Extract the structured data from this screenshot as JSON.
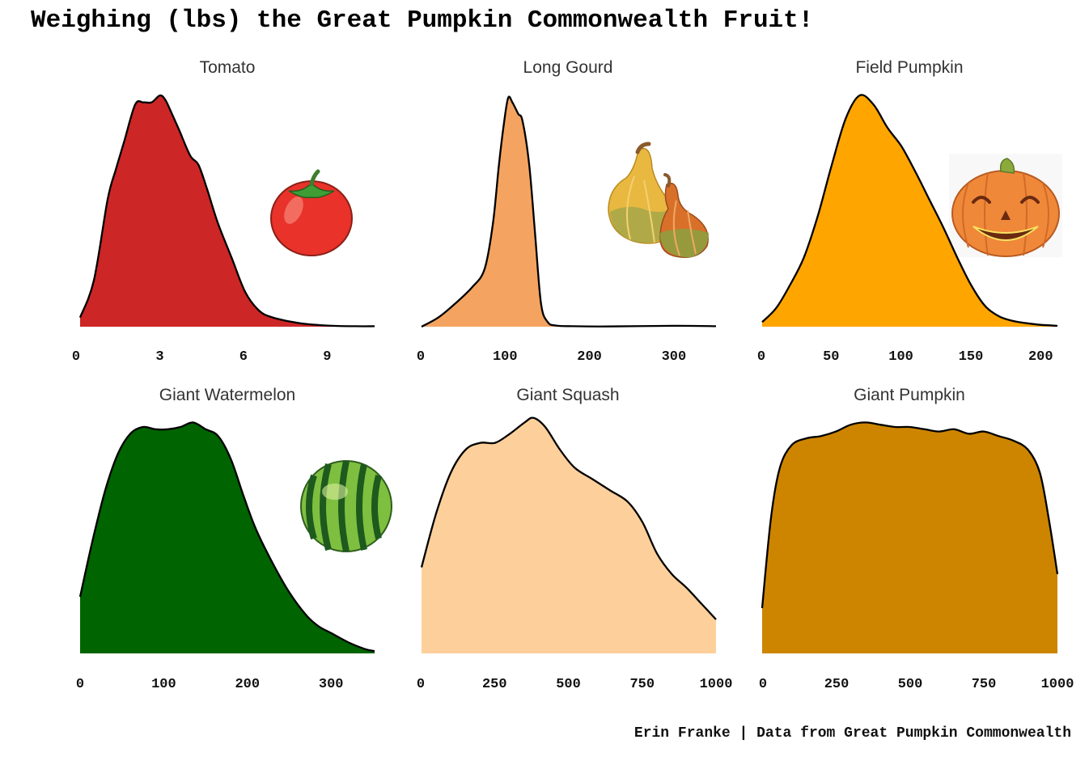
{
  "title": "Weighing (lbs) the Great Pumpkin Commonwealth Fruit!",
  "caption": "Erin Franke | Data from Great Pumpkin Commonwealth",
  "chart_data": {
    "type": "area",
    "panels": [
      {
        "name": "Tomato",
        "fill": "#CD2626",
        "icon": "tomato-icon",
        "xlim": [
          0,
          10.7
        ],
        "ticks": [
          0,
          3,
          6,
          9
        ],
        "x": [
          0,
          0.5,
          1,
          1.3,
          1.6,
          2,
          2.3,
          2.6,
          2.9,
          3.1,
          3.3,
          3.6,
          4,
          4.3,
          4.6,
          5,
          5.5,
          6,
          6.5,
          7,
          8,
          9,
          10,
          10.7
        ],
        "y": [
          0.04,
          0.2,
          0.55,
          0.68,
          0.8,
          0.96,
          0.97,
          0.97,
          1.0,
          0.98,
          0.93,
          0.85,
          0.74,
          0.7,
          0.6,
          0.45,
          0.3,
          0.15,
          0.07,
          0.04,
          0.015,
          0.005,
          0.002,
          0.002
        ]
      },
      {
        "name": "Long Gourd",
        "fill": "#F4A460",
        "icon": "gourd-icon",
        "xlim": [
          0,
          350
        ],
        "ticks": [
          0,
          100,
          200,
          300
        ],
        "x": [
          0,
          20,
          40,
          60,
          75,
          85,
          92,
          98,
          103,
          108,
          115,
          120,
          128,
          135,
          142,
          150,
          160,
          180,
          220,
          300,
          350
        ],
        "y": [
          0,
          0.04,
          0.1,
          0.17,
          0.25,
          0.45,
          0.7,
          0.88,
          0.99,
          0.97,
          0.92,
          0.89,
          0.7,
          0.4,
          0.1,
          0.02,
          0.005,
          0.002,
          0.001,
          0.004,
          0.002
        ]
      },
      {
        "name": "Field Pumpkin",
        "fill": "#FFA500",
        "icon": "jack-o-lantern-icon",
        "xlim": [
          0,
          212
        ],
        "ticks": [
          0,
          50,
          100,
          150,
          200
        ],
        "x": [
          0,
          10,
          20,
          30,
          40,
          50,
          60,
          70,
          80,
          90,
          100,
          110,
          120,
          130,
          140,
          150,
          160,
          170,
          180,
          190,
          200,
          212
        ],
        "y": [
          0.02,
          0.08,
          0.18,
          0.3,
          0.48,
          0.7,
          0.9,
          1.0,
          0.96,
          0.86,
          0.78,
          0.67,
          0.55,
          0.43,
          0.3,
          0.18,
          0.09,
          0.045,
          0.025,
          0.015,
          0.008,
          0.004
        ]
      },
      {
        "name": "Giant Watermelon",
        "fill": "#006400",
        "icon": "watermelon-icon",
        "xlim": [
          0,
          352
        ],
        "ticks": [
          0,
          100,
          200,
          300
        ],
        "x": [
          0,
          15,
          30,
          45,
          60,
          75,
          90,
          105,
          120,
          135,
          150,
          165,
          180,
          195,
          210,
          230,
          250,
          270,
          285,
          300,
          320,
          340,
          352
        ],
        "y": [
          0.25,
          0.5,
          0.72,
          0.88,
          0.97,
          1.0,
          0.99,
          0.99,
          1.0,
          1.02,
          0.99,
          0.96,
          0.86,
          0.7,
          0.55,
          0.4,
          0.27,
          0.17,
          0.12,
          0.09,
          0.05,
          0.02,
          0.01
        ]
      },
      {
        "name": "Giant Squash",
        "fill": "#FDD09B",
        "icon": "",
        "xlim": [
          0,
          1000
        ],
        "ticks": [
          0,
          250,
          500,
          750,
          1000
        ],
        "x": [
          0,
          50,
          100,
          150,
          200,
          250,
          300,
          350,
          380,
          420,
          470,
          520,
          580,
          640,
          700,
          750,
          800,
          850,
          900,
          950,
          1000
        ],
        "y": [
          0.38,
          0.62,
          0.8,
          0.9,
          0.93,
          0.93,
          0.97,
          1.02,
          1.04,
          1.0,
          0.9,
          0.82,
          0.77,
          0.72,
          0.67,
          0.58,
          0.44,
          0.35,
          0.29,
          0.22,
          0.15
        ]
      },
      {
        "name": "Giant Pumpkin",
        "fill": "#CD8500",
        "icon": "",
        "xlim": [
          0,
          1000
        ],
        "ticks": [
          0,
          250,
          500,
          750,
          1000
        ],
        "x": [
          0,
          30,
          60,
          100,
          150,
          200,
          250,
          300,
          350,
          400,
          450,
          500,
          550,
          600,
          650,
          700,
          750,
          800,
          850,
          900,
          940,
          970,
          1000
        ],
        "y": [
          0.2,
          0.6,
          0.82,
          0.92,
          0.95,
          0.96,
          0.98,
          1.01,
          1.02,
          1.01,
          1.0,
          1.0,
          0.99,
          0.98,
          0.99,
          0.97,
          0.98,
          0.96,
          0.94,
          0.9,
          0.8,
          0.6,
          0.35
        ]
      }
    ]
  }
}
